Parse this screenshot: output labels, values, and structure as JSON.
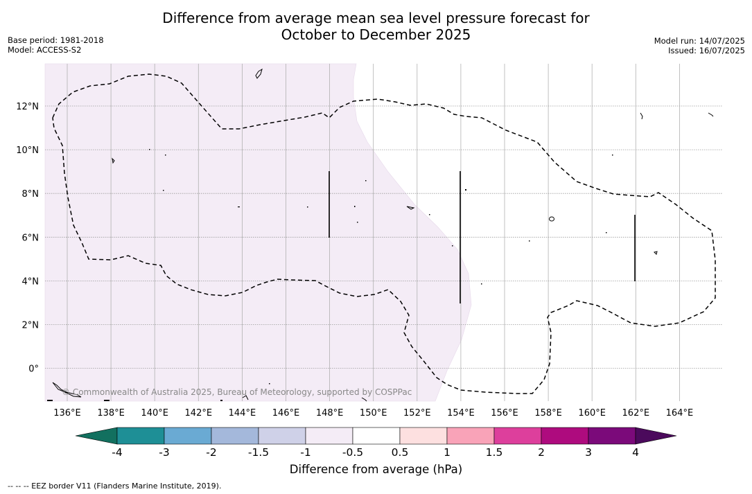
{
  "title": {
    "line1": "Difference from average mean sea level pressure forecast for",
    "line2": "October to December 2025"
  },
  "meta_left": {
    "base_period": "Base period: 1981-2018",
    "model": "Model: ACCESS-S2"
  },
  "meta_right": {
    "model_run": "Model run: 14/07/2025",
    "issued": "Issued: 16/07/2025"
  },
  "map": {
    "lon_ticks": [
      "136°E",
      "138°E",
      "140°E",
      "142°E",
      "144°E",
      "146°E",
      "148°E",
      "150°E",
      "152°E",
      "154°E",
      "156°E",
      "158°E",
      "160°E",
      "162°E",
      "164°E"
    ],
    "lat_ticks": [
      "12°N",
      "10°N",
      "8°N",
      "6°N",
      "4°N",
      "2°N",
      "0°"
    ],
    "copyright": "© Commonwealth of Australia 2025, Bureau of Meteorology, supported by COSPPac",
    "shaded_region_category": "-1 to -0.5",
    "shaded_color": "#f4ecf6"
  },
  "colorbar": {
    "title": "Difference from average (hPa)",
    "tick_labels": [
      "-4",
      "-3",
      "-2",
      "-1.5",
      "-1",
      "-0.5",
      "0.5",
      "1",
      "1.5",
      "2",
      "3",
      "4"
    ],
    "colors": [
      "#1e8f96",
      "#6aaad3",
      "#a4b8db",
      "#cfd1e8",
      "#f4ecf6",
      "#ffffff",
      "#fde0e0",
      "#f9a3b8",
      "#dd3f9c",
      "#ae0b7e",
      "#7b0a7a"
    ],
    "under_color": "#12705f",
    "over_color": "#4b0a5c"
  },
  "footnote": "--  --  -- EEZ border V11 (Flanders Marine Institute, 2019)."
}
